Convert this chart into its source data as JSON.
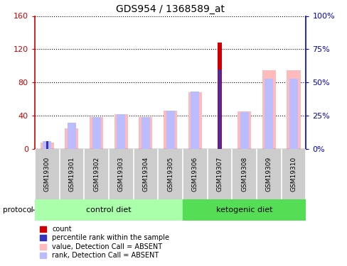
{
  "title": "GDS954 / 1368589_at",
  "samples": [
    "GSM19300",
    "GSM19301",
    "GSM19302",
    "GSM19303",
    "GSM19304",
    "GSM19305",
    "GSM19306",
    "GSM19307",
    "GSM19308",
    "GSM19309",
    "GSM19310"
  ],
  "value_absent": [
    8,
    25,
    38,
    42,
    38,
    46,
    68,
    0,
    45,
    95,
    95
  ],
  "rank_absent_pct": [
    6,
    20,
    24,
    26,
    24,
    29,
    43,
    0,
    28,
    53,
    53
  ],
  "count": [
    5,
    5,
    0,
    0,
    0,
    0,
    0,
    128,
    0,
    0,
    0
  ],
  "percentile_rank_pct": [
    6,
    0,
    0,
    0,
    0,
    0,
    0,
    60,
    0,
    0,
    0
  ],
  "ylim_left": [
    0,
    160
  ],
  "ylim_right": [
    0,
    100
  ],
  "yticks_left": [
    0,
    40,
    80,
    120,
    160
  ],
  "yticks_right": [
    0,
    25,
    50,
    75,
    100
  ],
  "ytick_labels_left": [
    "0",
    "40",
    "80",
    "120",
    "160"
  ],
  "ytick_labels_right": [
    "0%",
    "25%",
    "50%",
    "75%",
    "100%"
  ],
  "left_axis_color": "#cc0000",
  "right_axis_color": "#0000cc",
  "color_count": "#cc0000",
  "color_percentile": "#3333bb",
  "color_value_absent": "#ffbbbb",
  "color_rank_absent": "#bbbbff",
  "control_diet_color": "#aaffaa",
  "ketogenic_diet_color": "#55dd55",
  "sample_box_color": "#cccccc",
  "legend_items": [
    "count",
    "percentile rank within the sample",
    "value, Detection Call = ABSENT",
    "rank, Detection Call = ABSENT"
  ],
  "legend_colors": [
    "#cc0000",
    "#3333bb",
    "#ffbbbb",
    "#bbbbff"
  ],
  "n_control": 6,
  "n_keto": 5
}
